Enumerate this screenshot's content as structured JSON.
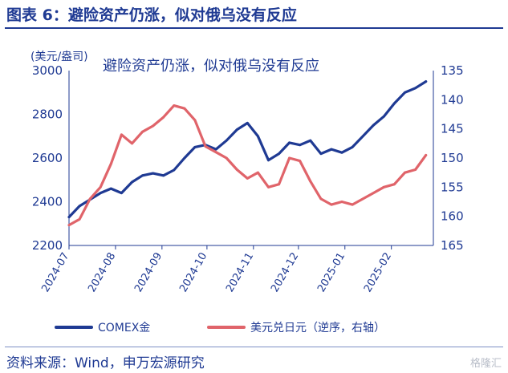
{
  "figure": {
    "title": "图表 6：避险资产仍涨，似对俄乌没有反应",
    "source": "资料来源：Wind，申万宏源研究",
    "watermark": "格隆汇"
  },
  "colors": {
    "gold": "#1f3a93",
    "usd": "#e0646a"
  },
  "chart_data": {
    "type": "line",
    "title": "避险资产仍涨，似对俄乌没有反应",
    "left_axis": {
      "unit": "(美元/盎司)",
      "range": [
        2200,
        3000
      ],
      "ticks": [
        2200,
        2400,
        2600,
        2800,
        3000
      ]
    },
    "right_axis": {
      "range": [
        135,
        165
      ],
      "ticks": [
        135,
        140,
        145,
        150,
        155,
        160,
        165
      ],
      "inverted": true
    },
    "x_ticks": [
      "2024-07",
      "2024-08",
      "2024-09",
      "2024-10",
      "2024-11",
      "2024-12",
      "2025-01",
      "2025-02"
    ],
    "series": [
      {
        "name": "COMEX金",
        "axis": "left",
        "x": [
          "2024-07-01",
          "2024-07-08",
          "2024-07-15",
          "2024-07-22",
          "2024-07-29",
          "2024-08-05",
          "2024-08-12",
          "2024-08-19",
          "2024-08-26",
          "2024-09-02",
          "2024-09-09",
          "2024-09-16",
          "2024-09-23",
          "2024-09-30",
          "2024-10-07",
          "2024-10-14",
          "2024-10-21",
          "2024-10-28",
          "2024-11-04",
          "2024-11-11",
          "2024-11-18",
          "2024-11-25",
          "2024-12-02",
          "2024-12-09",
          "2024-12-16",
          "2024-12-23",
          "2024-12-30",
          "2025-01-06",
          "2025-01-13",
          "2025-01-20",
          "2025-01-27",
          "2025-02-03",
          "2025-02-10",
          "2025-02-17",
          "2025-02-24"
        ],
        "values": [
          2330,
          2380,
          2410,
          2440,
          2460,
          2440,
          2490,
          2520,
          2530,
          2520,
          2545,
          2600,
          2650,
          2660,
          2640,
          2680,
          2730,
          2760,
          2700,
          2590,
          2620,
          2670,
          2660,
          2680,
          2620,
          2640,
          2625,
          2650,
          2700,
          2750,
          2790,
          2850,
          2900,
          2920,
          2950
        ]
      },
      {
        "name": "美元兑日元（逆序，右轴）",
        "axis": "right",
        "x": [
          "2024-07-01",
          "2024-07-08",
          "2024-07-15",
          "2024-07-22",
          "2024-07-29",
          "2024-08-05",
          "2024-08-12",
          "2024-08-19",
          "2024-08-26",
          "2024-09-02",
          "2024-09-09",
          "2024-09-16",
          "2024-09-23",
          "2024-09-30",
          "2024-10-07",
          "2024-10-14",
          "2024-10-21",
          "2024-10-28",
          "2024-11-04",
          "2024-11-11",
          "2024-11-18",
          "2024-11-25",
          "2024-12-02",
          "2024-12-09",
          "2024-12-16",
          "2024-12-23",
          "2024-12-30",
          "2025-01-06",
          "2025-01-13",
          "2025-01-20",
          "2025-01-27",
          "2025-02-03",
          "2025-02-10",
          "2025-02-17",
          "2025-02-24"
        ],
        "values": [
          161.5,
          160.5,
          157.0,
          155.0,
          151.0,
          146.0,
          147.5,
          145.5,
          144.5,
          143.0,
          141.0,
          141.5,
          143.5,
          148.0,
          149.0,
          150.0,
          152.0,
          153.5,
          152.5,
          155.0,
          154.5,
          150.0,
          150.5,
          154.0,
          157.0,
          158.0,
          157.5,
          158.0,
          157.0,
          156.0,
          155.0,
          154.5,
          152.5,
          152.0,
          149.5
        ]
      }
    ]
  }
}
